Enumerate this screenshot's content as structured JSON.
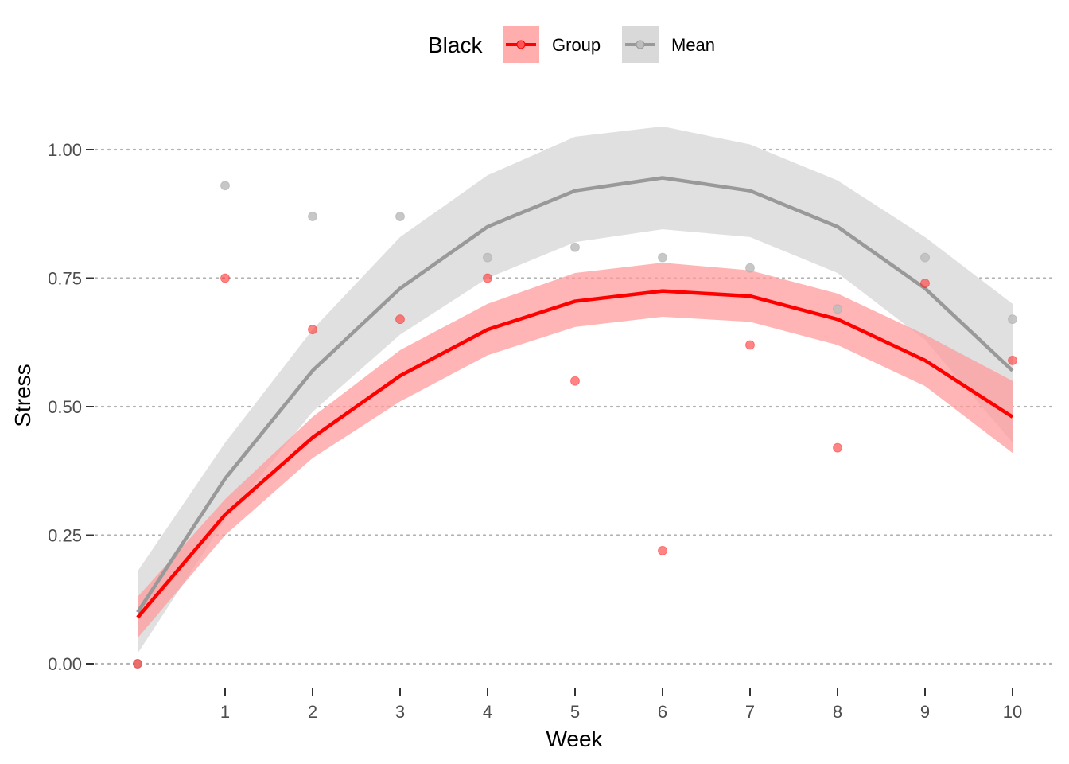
{
  "chart_data": {
    "type": "line",
    "xlabel": "Week",
    "ylabel": "Stress",
    "xlim": [
      0,
      10
    ],
    "ylim": [
      0,
      1
    ],
    "x_ticks": [
      1,
      2,
      3,
      4,
      5,
      6,
      7,
      8,
      9,
      10
    ],
    "y_ticks": [
      "0.00",
      "0.25",
      "0.50",
      "0.75",
      "1.00"
    ],
    "grid": "horizontal dotted",
    "legend": {
      "title": "Black",
      "position": "top",
      "entries": [
        "Group",
        "Mean"
      ]
    },
    "colors": {
      "Group": "#ff0000",
      "Group_ribbon": "#ff9999",
      "Mean": "#999999",
      "Mean_ribbon": "#e0e0e0",
      "grid": "#b3b3b3",
      "tick": "#4d4d4d"
    },
    "x": [
      0,
      1,
      2,
      3,
      4,
      5,
      6,
      7,
      8,
      9,
      10
    ],
    "series": [
      {
        "name": "Mean",
        "fit": [
          0.1,
          0.36,
          0.57,
          0.73,
          0.85,
          0.92,
          0.945,
          0.92,
          0.85,
          0.73,
          0.57
        ],
        "lower": [
          0.02,
          0.28,
          0.49,
          0.64,
          0.75,
          0.82,
          0.845,
          0.83,
          0.76,
          0.63,
          0.43
        ],
        "upper": [
          0.18,
          0.43,
          0.65,
          0.83,
          0.95,
          1.025,
          1.045,
          1.01,
          0.94,
          0.83,
          0.7
        ],
        "points": [
          0.0,
          0.93,
          0.87,
          0.87,
          0.79,
          0.81,
          0.79,
          0.77,
          0.69,
          0.79,
          0.67
        ]
      },
      {
        "name": "Group",
        "fit": [
          0.09,
          0.29,
          0.44,
          0.56,
          0.65,
          0.705,
          0.725,
          0.715,
          0.67,
          0.59,
          0.48
        ],
        "lower": [
          0.05,
          0.25,
          0.4,
          0.51,
          0.6,
          0.655,
          0.675,
          0.665,
          0.62,
          0.54,
          0.41
        ],
        "upper": [
          0.13,
          0.32,
          0.48,
          0.61,
          0.7,
          0.76,
          0.78,
          0.765,
          0.72,
          0.64,
          0.55
        ],
        "points": [
          0.0,
          0.75,
          0.65,
          0.67,
          0.75,
          0.55,
          0.22,
          0.62,
          0.42,
          0.74,
          0.59
        ]
      }
    ]
  }
}
